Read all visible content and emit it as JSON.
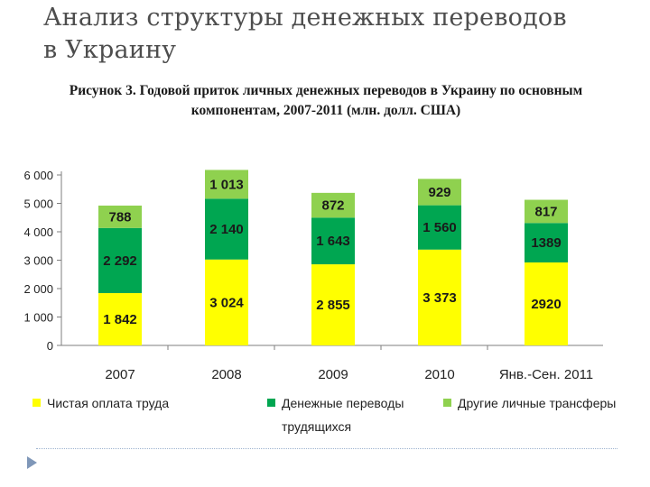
{
  "slide": {
    "title_line1": "Анализ структуры денежных переводов",
    "title_line2": "в Украину"
  },
  "figure": {
    "caption_line1": "Рисунок 3. Годовой приток личных денежных переводов в Украину по основным",
    "caption_line2": "компонентам, 2007-2011 (млн. долл. США)"
  },
  "chart_data": {
    "type": "bar",
    "stacked": true,
    "categories": [
      "2007",
      "2008",
      "2009",
      "2010",
      "Янв.-Сен. 2011"
    ],
    "series": [
      {
        "name": "Чистая оплата труда",
        "values": [
          1842,
          3024,
          2855,
          3373,
          2920
        ],
        "labels": [
          "1 842",
          "3 024",
          "2 855",
          "3 373",
          "2920"
        ],
        "color": "#ffff00"
      },
      {
        "name": "Денежные переводы трудящихся",
        "values": [
          2292,
          2140,
          1643,
          1560,
          1389
        ],
        "labels": [
          "2 292",
          "2 140",
          "1 643",
          "1 560",
          "1389"
        ],
        "color": "#00a651"
      },
      {
        "name": "Другие личные трансферы",
        "values": [
          788,
          1013,
          872,
          929,
          817
        ],
        "labels": [
          "788",
          "1 013",
          "872",
          "929",
          "817"
        ],
        "color": "#8fd14f"
      }
    ],
    "yticks": [
      "0",
      "1 000",
      "2 000",
      "3 000",
      "4 000",
      "5 000",
      "6 000"
    ],
    "ylim": [
      0,
      6000
    ],
    "grid": false,
    "legend_position": "bottom",
    "legend_lines": [
      [
        "Денежные переводы"
      ],
      [
        "трудящихся"
      ]
    ]
  }
}
